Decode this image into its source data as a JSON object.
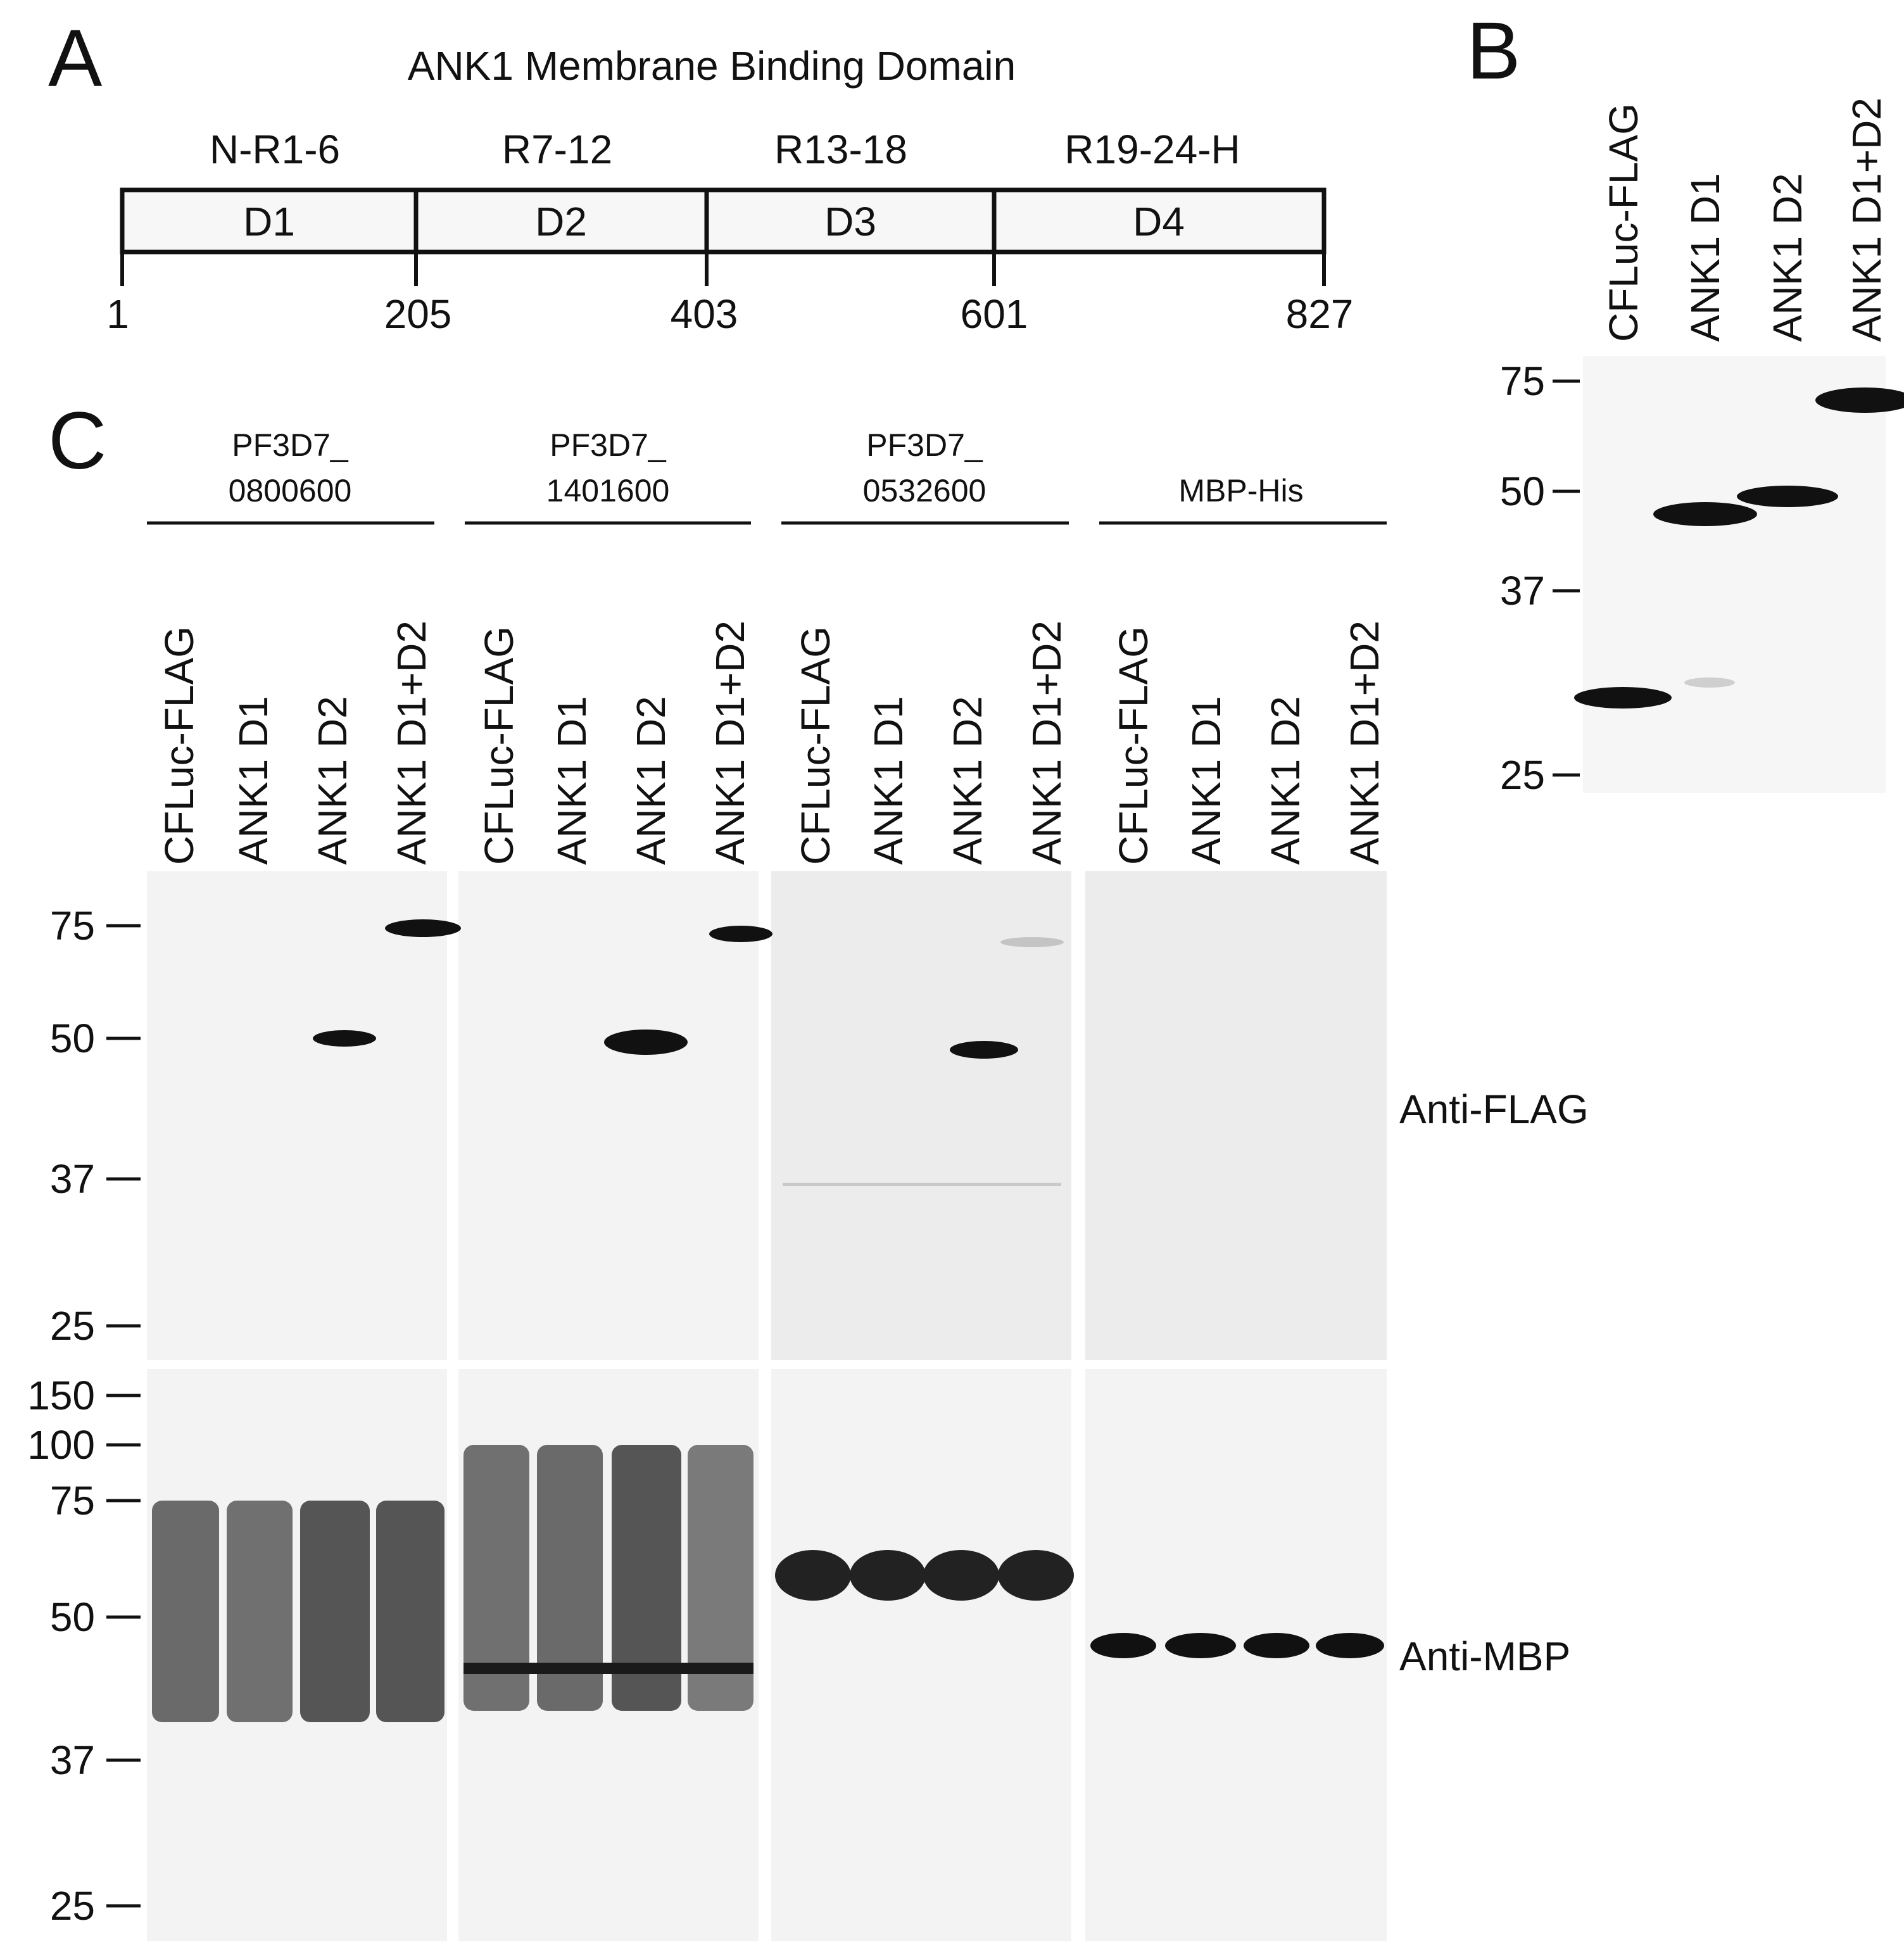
{
  "panel_a": {
    "letter": "A",
    "title": "ANK1 Membrane Binding Domain",
    "domains": [
      {
        "label": "D1",
        "repeats": "N-R1-6",
        "start": 1,
        "end": 205
      },
      {
        "label": "D2",
        "repeats": "R7-12",
        "start": 205,
        "end": 403
      },
      {
        "label": "D3",
        "repeats": "R13-18",
        "start": 403,
        "end": 601
      },
      {
        "label": "D4",
        "repeats": "R19-24-H",
        "start": 601,
        "end": 827
      }
    ],
    "positions": [
      "1",
      "205",
      "403",
      "601",
      "827"
    ]
  },
  "panel_b": {
    "letter": "B",
    "lanes": [
      "CFLuc-FLAG",
      "ANK1 D1",
      "ANK1 D2",
      "ANK1 D1+D2"
    ],
    "mw_markers": [
      "75",
      "50",
      "37",
      "25"
    ]
  },
  "panel_c": {
    "letter": "C",
    "groups": [
      {
        "line1": "PF3D7_",
        "line2": "0800600"
      },
      {
        "line1": "PF3D7_",
        "line2": "1401600"
      },
      {
        "line1": "PF3D7_",
        "line2": "0532600"
      },
      {
        "line1": "MBP-His",
        "line2": ""
      }
    ],
    "lanes": [
      "CFLuc-FLAG",
      "ANK1 D1",
      "ANK1 D2",
      "ANK1 D1+D2"
    ],
    "blot_top": {
      "antibody": "Anti-FLAG",
      "mw_markers": [
        "75",
        "50",
        "37",
        "25"
      ]
    },
    "blot_bottom": {
      "antibody": "Anti-MBP",
      "mw_markers": [
        "150",
        "100",
        "75",
        "50",
        "37",
        "25"
      ]
    }
  }
}
